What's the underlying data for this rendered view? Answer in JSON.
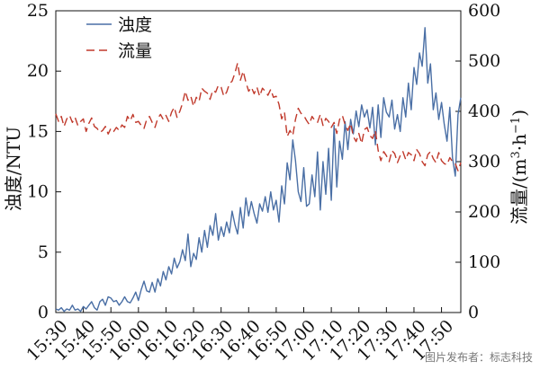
{
  "chart_data": {
    "type": "line",
    "xlabel": "",
    "ylabel_left": "浊度/NTU",
    "ylabel_right": {
      "prefix": "流量/(m",
      "sup1": "3",
      "mid": "·h",
      "sup2": "−1",
      "suffix": ")"
    },
    "ylim_left": [
      0,
      25
    ],
    "yticks_left": [
      "0",
      "5",
      "10",
      "15",
      "20",
      "25"
    ],
    "ylim_right": [
      0,
      600
    ],
    "yticks_right": [
      "0",
      "100",
      "200",
      "300",
      "400",
      "500",
      "600"
    ],
    "xlim": [
      0,
      147
    ],
    "xticks": [
      {
        "label": "15:30",
        "x": 0
      },
      {
        "label": "15:40",
        "x": 10
      },
      {
        "label": "15:50",
        "x": 20
      },
      {
        "label": "16:00",
        "x": 30
      },
      {
        "label": "16:10",
        "x": 40
      },
      {
        "label": "16:20",
        "x": 50
      },
      {
        "label": "16:30",
        "x": 60
      },
      {
        "label": "16:40",
        "x": 70
      },
      {
        "label": "16:50",
        "x": 80
      },
      {
        "label": "17:00",
        "x": 90
      },
      {
        "label": "17:10",
        "x": 100
      },
      {
        "label": "17:20",
        "x": 110
      },
      {
        "label": "17:30",
        "x": 120
      },
      {
        "label": "17:40",
        "x": 130
      },
      {
        "label": "17:50",
        "x": 140
      }
    ],
    "series": [
      {
        "name": "浊度",
        "axis": "left",
        "style": "solid",
        "color": "#4a6fa5",
        "x": [
          0,
          1,
          2,
          3,
          4,
          5,
          6,
          7,
          8,
          9,
          10,
          11,
          12,
          13,
          14,
          15,
          16,
          17,
          18,
          19,
          20,
          21,
          22,
          23,
          24,
          25,
          26,
          27,
          28,
          29,
          30,
          31,
          32,
          33,
          34,
          35,
          36,
          37,
          38,
          39,
          40,
          41,
          42,
          43,
          44,
          45,
          46,
          47,
          48,
          49,
          50,
          51,
          52,
          53,
          54,
          55,
          56,
          57,
          58,
          59,
          60,
          61,
          62,
          63,
          64,
          65,
          66,
          67,
          68,
          69,
          70,
          71,
          72,
          73,
          74,
          75,
          76,
          77,
          78,
          79,
          80,
          81,
          82,
          83,
          84,
          85,
          86,
          87,
          88,
          89,
          90,
          91,
          92,
          93,
          94,
          95,
          96,
          97,
          98,
          99,
          100,
          101,
          102,
          103,
          104,
          105,
          106,
          107,
          108,
          109,
          110,
          111,
          112,
          113,
          114,
          115,
          116,
          117,
          118,
          119,
          120,
          121,
          122,
          123,
          124,
          125,
          126,
          127,
          128,
          129,
          130,
          131,
          132,
          133,
          134,
          135,
          136,
          137,
          138,
          139,
          140,
          141,
          142,
          143,
          144,
          145,
          146,
          147
        ],
        "values": [
          0.3,
          0.2,
          0.4,
          0.1,
          0.3,
          0.2,
          0.6,
          0.2,
          0.3,
          0.1,
          0.5,
          0.3,
          0.6,
          0.9,
          0.4,
          0.2,
          0.9,
          1.1,
          0.6,
          1.3,
          1.2,
          0.9,
          1.0,
          0.6,
          0.9,
          1.3,
          0.9,
          0.8,
          1.2,
          1.7,
          1.0,
          1.9,
          2.6,
          1.8,
          1.7,
          2.5,
          1.7,
          2.8,
          2.2,
          3.4,
          2.7,
          3.8,
          3.2,
          4.5,
          3.7,
          4.2,
          5.2,
          4.3,
          6.5,
          3.8,
          4.9,
          4.4,
          6.2,
          5.0,
          6.8,
          5.4,
          7.2,
          6.4,
          8.2,
          6.0,
          7.1,
          6.3,
          7.5,
          6.6,
          8.4,
          7.3,
          6.5,
          8.7,
          7.0,
          9.5,
          8.0,
          9.2,
          8.2,
          7.4,
          9.0,
          8.4,
          9.6,
          8.3,
          10.0,
          8.5,
          9.3,
          7.5,
          10.5,
          9.0,
          12.4,
          11.0,
          14.3,
          12.6,
          10.0,
          9.2,
          12.0,
          8.8,
          9.0,
          11.4,
          9.6,
          13.3,
          8.5,
          12.5,
          9.8,
          13.6,
          9.3,
          15.5,
          10.4,
          14.2,
          12.7,
          15.8,
          13.5,
          16.0,
          14.8,
          16.7,
          15.4,
          17.2,
          16.2,
          16.8,
          15.3,
          17.0,
          13.9,
          17.2,
          14.5,
          17.8,
          16.6,
          16.2,
          17.6,
          15.2,
          16.4,
          15.0,
          17.8,
          16.2,
          19.0,
          16.8,
          20.3,
          18.9,
          21.5,
          20.4,
          23.6,
          19.0,
          20.6,
          16.8,
          18.2,
          16.0,
          17.4,
          15.6,
          14.2,
          17.0,
          12.8,
          11.3,
          16.4,
          17.8
        ]
      },
      {
        "name": "流量",
        "axis": "right",
        "style": "dashed",
        "color": "#c0392b",
        "x": [
          0,
          1,
          2,
          3,
          4,
          5,
          6,
          7,
          8,
          9,
          10,
          11,
          12,
          13,
          14,
          15,
          16,
          17,
          18,
          19,
          20,
          21,
          22,
          23,
          24,
          25,
          26,
          27,
          28,
          29,
          30,
          31,
          32,
          33,
          34,
          35,
          36,
          37,
          38,
          39,
          40,
          41,
          42,
          43,
          44,
          45,
          46,
          47,
          48,
          49,
          50,
          51,
          52,
          53,
          54,
          55,
          56,
          57,
          58,
          59,
          60,
          61,
          62,
          63,
          64,
          65,
          66,
          67,
          68,
          69,
          70,
          71,
          72,
          73,
          74,
          75,
          76,
          77,
          78,
          79,
          80,
          81,
          82,
          83,
          84,
          85,
          86,
          87,
          88,
          89,
          90,
          91,
          92,
          93,
          94,
          95,
          96,
          97,
          98,
          99,
          100,
          101,
          102,
          103,
          104,
          105,
          106,
          107,
          108,
          109,
          110,
          111,
          112,
          113,
          114,
          115,
          116,
          117,
          118,
          119,
          120,
          121,
          122,
          123,
          124,
          125,
          126,
          127,
          128,
          129,
          130,
          131,
          132,
          133,
          134,
          135,
          136,
          137,
          138,
          139,
          140,
          141,
          142,
          143,
          144,
          145,
          146,
          147
        ],
        "values": [
          395,
          380,
          390,
          370,
          385,
          392,
          378,
          388,
          372,
          380,
          385,
          360,
          376,
          387,
          370,
          366,
          358,
          362,
          370,
          355,
          366,
          360,
          368,
          362,
          373,
          368,
          390,
          381,
          394,
          378,
          380,
          372,
          366,
          384,
          390,
          378,
          368,
          386,
          394,
          384,
          392,
          380,
          398,
          408,
          388,
          400,
          416,
          440,
          422,
          430,
          410,
          428,
          420,
          446,
          440,
          436,
          424,
          442,
          438,
          452,
          448,
          430,
          438,
          455,
          460,
          476,
          496,
          462,
          480,
          458,
          440,
          448,
          435,
          448,
          430,
          446,
          440,
          432,
          444,
          428,
          430,
          414,
          385,
          398,
          350,
          362,
          352,
          384,
          406,
          396,
          392,
          382,
          374,
          390,
          382,
          378,
          394,
          372,
          386,
          380,
          368,
          378,
          356,
          384,
          392,
          374,
          362,
          376,
          350,
          340,
          356,
          336,
          364,
          368,
          352,
          346,
          362,
          322,
          302,
          320,
          312,
          300,
          322,
          316,
          298,
          312,
          320,
          304,
          318,
          314,
          302,
          324,
          316,
          300,
          292,
          314,
          320,
          306,
          298,
          318,
          302,
          296,
          294,
          308,
          300,
          296,
          282,
          298
        ]
      }
    ],
    "legend": {
      "position": "top-left"
    },
    "grid": false
  },
  "footer": {
    "watermark": "图片发布者：标志科技"
  }
}
